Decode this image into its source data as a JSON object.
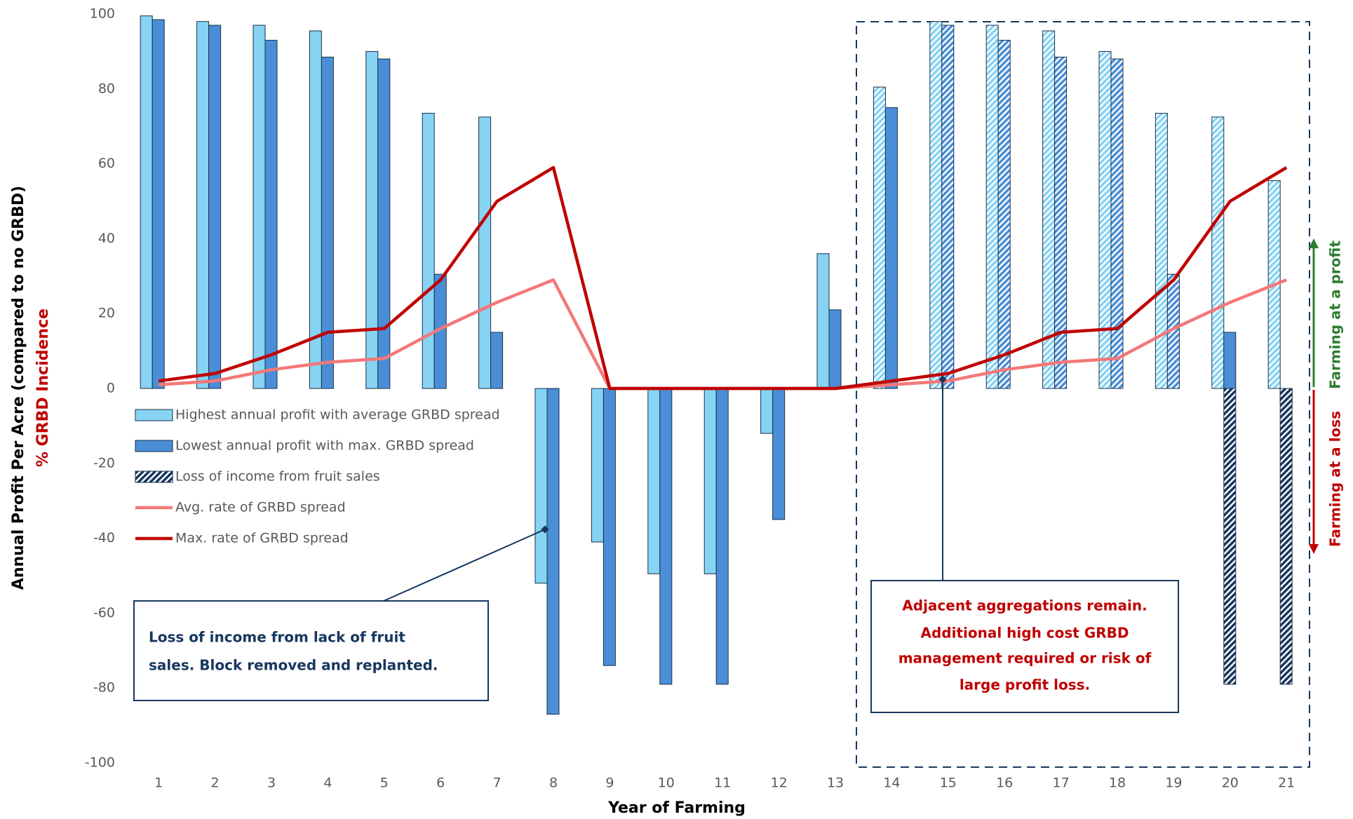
{
  "chart_data": {
    "type": "bar-line",
    "xlabel": "Year of Farming",
    "ylabel": "Annual Profit Per Acre (compared to no GRBD)",
    "ylabel2": "% GRBD Incidence",
    "categories": [
      1,
      2,
      3,
      4,
      5,
      6,
      7,
      8,
      9,
      10,
      11,
      12,
      13,
      14,
      15,
      16,
      17,
      18,
      19,
      20,
      21
    ],
    "ylim": [
      -100,
      100
    ],
    "yticks": [
      -100,
      -80,
      -60,
      -40,
      -20,
      0,
      20,
      40,
      60,
      80,
      100
    ],
    "legend": "left",
    "series": [
      {
        "name": "Highest annual profit with average GRBD spread",
        "kind": "bar",
        "color": "#86d3f3",
        "values": [
          99.5,
          98,
          97,
          95.5,
          90,
          73.5,
          72.5,
          -52,
          -41,
          -49.5,
          -49.5,
          -12,
          36,
          80.5,
          98,
          97,
          95.5,
          90,
          73.5,
          72.5,
          55.5
        ],
        "hatch": [
          false,
          false,
          false,
          false,
          false,
          false,
          false,
          false,
          false,
          false,
          false,
          false,
          false,
          true,
          true,
          true,
          true,
          true,
          true,
          true,
          true
        ]
      },
      {
        "name": "Lowest annual profit with max. GRBD spread",
        "kind": "bar",
        "color": "#4a8ed8",
        "values": [
          98.5,
          97,
          93,
          88.5,
          88,
          30.5,
          15,
          -87,
          -74,
          -79,
          -79,
          -35,
          21,
          75,
          97,
          93,
          88.5,
          88,
          30.5,
          15,
          -4
        ],
        "hatch": [
          false,
          false,
          false,
          false,
          false,
          false,
          false,
          false,
          false,
          false,
          false,
          false,
          false,
          false,
          true,
          true,
          true,
          true,
          true,
          false,
          false
        ]
      },
      {
        "name": "Loss of income from fruit sales",
        "kind": "bar",
        "color": "#17375e",
        "values": [
          null,
          null,
          null,
          null,
          null,
          null,
          null,
          null,
          null,
          null,
          null,
          null,
          null,
          null,
          null,
          null,
          null,
          null,
          null,
          -79,
          -79
        ],
        "hatch": [
          true,
          true,
          true,
          true,
          true,
          true,
          true,
          true,
          true,
          true,
          true,
          true,
          true,
          true,
          true,
          true,
          true,
          true,
          true,
          true,
          true
        ]
      },
      {
        "name": "Avg. rate of GRBD spread",
        "kind": "line",
        "color": "#f47878",
        "values": [
          1,
          2,
          5,
          7,
          8,
          16,
          23,
          29,
          0,
          0,
          0,
          0,
          0,
          1,
          2,
          5,
          7,
          8,
          16,
          23,
          29
        ]
      },
      {
        "name": "Max. rate of GRBD spread",
        "kind": "line",
        "color": "#c00000",
        "values": [
          2,
          4,
          9,
          15,
          16,
          29,
          50,
          59,
          0,
          0,
          0,
          0,
          0,
          2,
          4,
          9,
          15,
          16,
          29,
          50,
          59
        ]
      }
    ],
    "annotations": [
      {
        "lines": [
          "Loss of income from lack of fruit",
          "sales. Block removed and replanted."
        ]
      },
      {
        "lines": [
          "Adjacent aggregations remain.",
          "Additional high cost GRBD",
          "management required or risk of",
          "large profit loss."
        ]
      }
    ],
    "side_labels": [
      "Farming at a profit",
      "Farming at a loss"
    ]
  }
}
